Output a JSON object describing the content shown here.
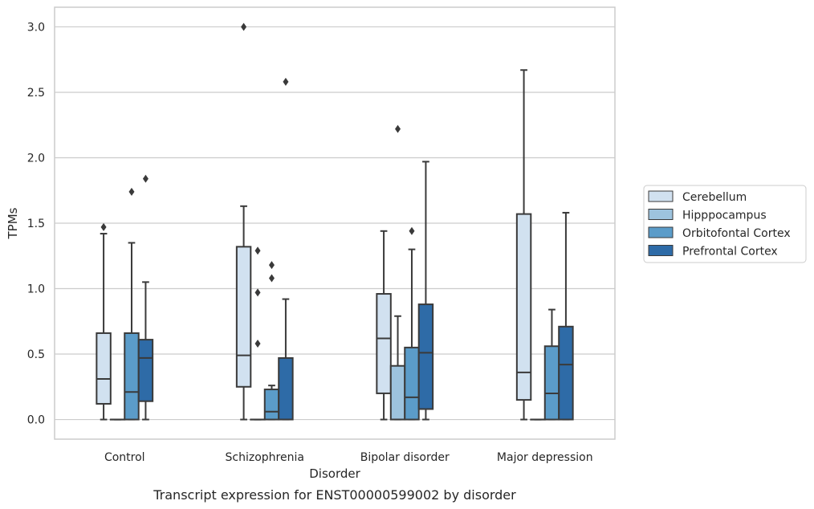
{
  "chart_data": {
    "type": "box",
    "caption": "Transcript expression for ENST00000599002 by disorder",
    "xlabel": "Disorder",
    "ylabel": "TPMs",
    "ylim": [
      -0.15,
      3.15
    ],
    "yticks": [
      0.0,
      0.5,
      1.0,
      1.5,
      2.0,
      2.5,
      3.0
    ],
    "ytick_labels": [
      "0.0",
      "0.5",
      "1.0",
      "1.5",
      "2.0",
      "2.5",
      "3.0"
    ],
    "grid": "horizontal",
    "legend_position": "right",
    "categories": [
      "Control",
      "Schizophrenia",
      "Bipolar disorder",
      "Major depression"
    ],
    "series": [
      {
        "name": "Cerebellum",
        "color": "#d1e1f0",
        "boxes": [
          {
            "min": 0.0,
            "q1": 0.12,
            "median": 0.31,
            "q3": 0.66,
            "max": 1.42,
            "outliers": [
              1.47
            ]
          },
          {
            "min": 0.0,
            "q1": 0.25,
            "median": 0.49,
            "q3": 1.32,
            "max": 1.63,
            "outliers": [
              3.0
            ]
          },
          {
            "min": 0.0,
            "q1": 0.2,
            "median": 0.62,
            "q3": 0.96,
            "max": 1.44,
            "outliers": []
          },
          {
            "min": 0.0,
            "q1": 0.15,
            "median": 0.36,
            "q3": 1.57,
            "max": 2.67,
            "outliers": []
          }
        ]
      },
      {
        "name": "Hipppocampus",
        "color": "#9dc3de",
        "boxes": [
          {
            "min": 0.0,
            "q1": 0.0,
            "median": 0.0,
            "q3": 0.0,
            "max": 0.0,
            "outliers": []
          },
          {
            "min": 0.0,
            "q1": 0.0,
            "median": 0.0,
            "q3": 0.0,
            "max": 0.0,
            "outliers": [
              1.29,
              0.97,
              0.58
            ]
          },
          {
            "min": 0.0,
            "q1": 0.0,
            "median": 0.0,
            "q3": 0.41,
            "max": 0.79,
            "outliers": [
              2.22
            ]
          },
          {
            "min": 0.0,
            "q1": 0.0,
            "median": 0.0,
            "q3": 0.0,
            "max": 0.0,
            "outliers": []
          }
        ]
      },
      {
        "name": "Orbitofontal Cortex",
        "color": "#5b9cc9",
        "boxes": [
          {
            "min": 0.0,
            "q1": 0.0,
            "median": 0.21,
            "q3": 0.66,
            "max": 1.35,
            "outliers": [
              1.74
            ]
          },
          {
            "min": 0.0,
            "q1": 0.0,
            "median": 0.06,
            "q3": 0.23,
            "max": 0.26,
            "outliers": [
              1.18,
              1.08
            ]
          },
          {
            "min": 0.0,
            "q1": 0.0,
            "median": 0.17,
            "q3": 0.55,
            "max": 1.3,
            "outliers": [
              1.44
            ]
          },
          {
            "min": 0.0,
            "q1": 0.0,
            "median": 0.2,
            "q3": 0.56,
            "max": 0.84,
            "outliers": []
          }
        ]
      },
      {
        "name": "Prefrontal Cortex",
        "color": "#2e6ba7",
        "boxes": [
          {
            "min": 0.0,
            "q1": 0.14,
            "median": 0.47,
            "q3": 0.61,
            "max": 1.05,
            "outliers": [
              1.84
            ]
          },
          {
            "min": 0.0,
            "q1": 0.0,
            "median": 0.0,
            "q3": 0.47,
            "max": 0.92,
            "outliers": [
              2.58
            ]
          },
          {
            "min": 0.0,
            "q1": 0.08,
            "median": 0.51,
            "q3": 0.88,
            "max": 1.97,
            "outliers": []
          },
          {
            "min": 0.0,
            "q1": 0.0,
            "median": 0.42,
            "q3": 0.71,
            "max": 1.58,
            "outliers": []
          }
        ]
      }
    ]
  }
}
